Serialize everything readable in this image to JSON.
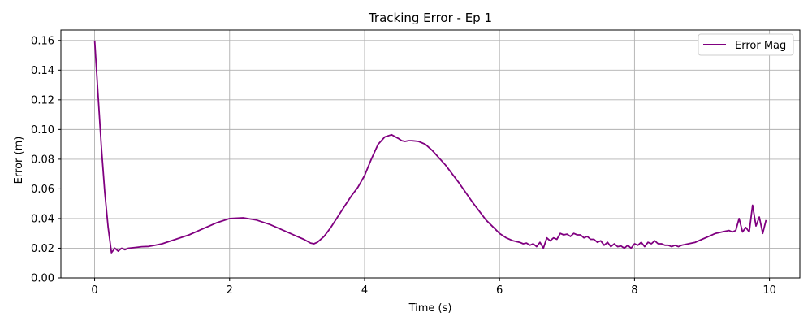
{
  "chart_data": {
    "type": "line",
    "title": "Tracking Error - Ep 1",
    "xlabel": "Time (s)",
    "ylabel": "Error (m)",
    "xlim": [
      -0.5,
      10.45
    ],
    "ylim": [
      0,
      0.167
    ],
    "xticks": [
      0,
      2,
      4,
      6,
      8,
      10
    ],
    "yticks": [
      0.0,
      0.02,
      0.04,
      0.06,
      0.08,
      0.1,
      0.12,
      0.14,
      0.16
    ],
    "xtick_labels": [
      "0",
      "2",
      "4",
      "6",
      "8",
      "10"
    ],
    "ytick_labels": [
      "0.00",
      "0.02",
      "0.04",
      "0.06",
      "0.08",
      "0.10",
      "0.12",
      "0.14",
      "0.16"
    ],
    "grid": true,
    "legend": {
      "position": "top-right"
    },
    "series": [
      {
        "name": "Error Mag",
        "color": "#800080",
        "x": [
          0.0,
          0.05,
          0.1,
          0.15,
          0.2,
          0.25,
          0.3,
          0.35,
          0.4,
          0.45,
          0.5,
          0.6,
          0.7,
          0.8,
          0.9,
          1.0,
          1.2,
          1.4,
          1.6,
          1.8,
          2.0,
          2.2,
          2.4,
          2.6,
          2.8,
          3.0,
          3.1,
          3.2,
          3.25,
          3.3,
          3.4,
          3.5,
          3.6,
          3.7,
          3.8,
          3.9,
          4.0,
          4.1,
          4.2,
          4.3,
          4.4,
          4.5,
          4.55,
          4.6,
          4.65,
          4.7,
          4.8,
          4.9,
          5.0,
          5.2,
          5.4,
          5.6,
          5.8,
          6.0,
          6.1,
          6.2,
          6.3,
          6.35,
          6.4,
          6.45,
          6.5,
          6.55,
          6.6,
          6.65,
          6.7,
          6.75,
          6.8,
          6.85,
          6.9,
          6.95,
          7.0,
          7.05,
          7.1,
          7.15,
          7.2,
          7.25,
          7.3,
          7.35,
          7.4,
          7.45,
          7.5,
          7.55,
          7.6,
          7.65,
          7.7,
          7.75,
          7.8,
          7.85,
          7.9,
          7.95,
          8.0,
          8.05,
          8.1,
          8.15,
          8.2,
          8.25,
          8.3,
          8.35,
          8.4,
          8.45,
          8.5,
          8.55,
          8.6,
          8.65,
          8.7,
          8.8,
          8.9,
          9.0,
          9.1,
          9.2,
          9.3,
          9.4,
          9.45,
          9.5,
          9.55,
          9.6,
          9.65,
          9.7,
          9.75,
          9.8,
          9.85,
          9.9,
          9.95
        ],
        "y": [
          0.16,
          0.124,
          0.088,
          0.058,
          0.034,
          0.017,
          0.02,
          0.018,
          0.02,
          0.019,
          0.02,
          0.0205,
          0.021,
          0.0212,
          0.022,
          0.023,
          0.026,
          0.029,
          0.033,
          0.037,
          0.04,
          0.0405,
          0.039,
          0.036,
          0.032,
          0.028,
          0.026,
          0.0235,
          0.023,
          0.024,
          0.028,
          0.034,
          0.041,
          0.048,
          0.055,
          0.061,
          0.069,
          0.08,
          0.09,
          0.095,
          0.0965,
          0.094,
          0.0925,
          0.092,
          0.0925,
          0.0925,
          0.092,
          0.09,
          0.086,
          0.076,
          0.064,
          0.051,
          0.039,
          0.03,
          0.027,
          0.025,
          0.024,
          0.023,
          0.0235,
          0.022,
          0.023,
          0.021,
          0.024,
          0.02,
          0.027,
          0.025,
          0.027,
          0.026,
          0.03,
          0.029,
          0.0295,
          0.028,
          0.03,
          0.029,
          0.029,
          0.027,
          0.028,
          0.026,
          0.026,
          0.024,
          0.025,
          0.022,
          0.024,
          0.021,
          0.023,
          0.021,
          0.0215,
          0.02,
          0.022,
          0.02,
          0.023,
          0.022,
          0.024,
          0.021,
          0.024,
          0.023,
          0.025,
          0.023,
          0.023,
          0.022,
          0.022,
          0.021,
          0.022,
          0.021,
          0.022,
          0.023,
          0.024,
          0.026,
          0.028,
          0.03,
          0.031,
          0.032,
          0.031,
          0.032,
          0.04,
          0.031,
          0.034,
          0.031,
          0.049,
          0.035,
          0.041,
          0.03,
          0.039
        ]
      }
    ]
  }
}
